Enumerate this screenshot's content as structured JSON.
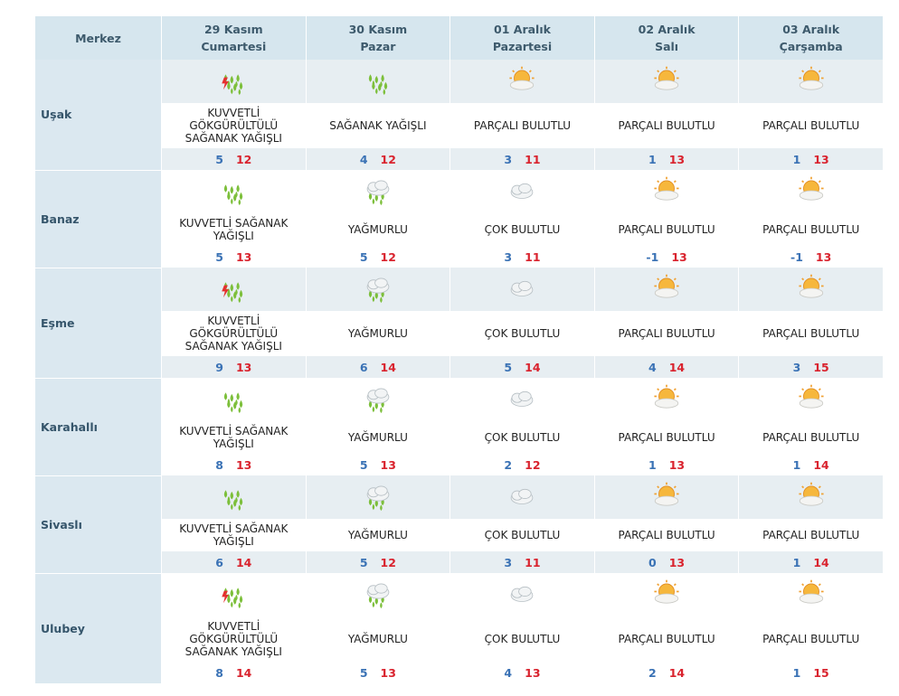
{
  "header": {
    "location_label": "Merkez",
    "days": [
      {
        "date": "29 Kasım",
        "weekday": "Cumartesi"
      },
      {
        "date": "30 Kasım",
        "weekday": "Pazar"
      },
      {
        "date": "01 Aralık",
        "weekday": "Pazartesi"
      },
      {
        "date": "02 Aralık",
        "weekday": "Salı"
      },
      {
        "date": "03 Aralık",
        "weekday": "Çarşamba"
      }
    ]
  },
  "rows": [
    {
      "city": "Uşak",
      "forecasts": [
        {
          "condition": "KUVVETLİ GÖKGÜRÜLTÜLÜ SAĞANAK YAĞIŞLI",
          "min": 5,
          "max": 12
        },
        {
          "condition": "SAĞANAK YAĞIŞLI",
          "min": 4,
          "max": 12
        },
        {
          "condition": "PARÇALI BULUTLU",
          "min": 3,
          "max": 11
        },
        {
          "condition": "PARÇALI BULUTLU",
          "min": 1,
          "max": 13
        },
        {
          "condition": "PARÇALI BULUTLU",
          "min": 1,
          "max": 13
        }
      ]
    },
    {
      "city": "Banaz",
      "forecasts": [
        {
          "condition": "KUVVETLİ SAĞANAK YAĞIŞLI",
          "min": 5,
          "max": 13
        },
        {
          "condition": "YAĞMURLU",
          "min": 5,
          "max": 12
        },
        {
          "condition": "ÇOK BULUTLU",
          "min": 3,
          "max": 11
        },
        {
          "condition": "PARÇALI BULUTLU",
          "min": -1,
          "max": 13
        },
        {
          "condition": "PARÇALI BULUTLU",
          "min": -1,
          "max": 13
        }
      ]
    },
    {
      "city": "Eşme",
      "forecasts": [
        {
          "condition": "KUVVETLİ GÖKGÜRÜLTÜLÜ SAĞANAK YAĞIŞLI",
          "min": 9,
          "max": 13
        },
        {
          "condition": "YAĞMURLU",
          "min": 6,
          "max": 14
        },
        {
          "condition": "ÇOK BULUTLU",
          "min": 5,
          "max": 14
        },
        {
          "condition": "PARÇALI BULUTLU",
          "min": 4,
          "max": 14
        },
        {
          "condition": "PARÇALI BULUTLU",
          "min": 3,
          "max": 15
        }
      ]
    },
    {
      "city": "Karahallı",
      "forecasts": [
        {
          "condition": "KUVVETLİ SAĞANAK YAĞIŞLI",
          "min": 8,
          "max": 13
        },
        {
          "condition": "YAĞMURLU",
          "min": 5,
          "max": 13
        },
        {
          "condition": "ÇOK BULUTLU",
          "min": 2,
          "max": 12
        },
        {
          "condition": "PARÇALI BULUTLU",
          "min": 1,
          "max": 13
        },
        {
          "condition": "PARÇALI BULUTLU",
          "min": 1,
          "max": 14
        }
      ]
    },
    {
      "city": "Sivaslı",
      "forecasts": [
        {
          "condition": "KUVVETLİ SAĞANAK YAĞIŞLI",
          "min": 6,
          "max": 14
        },
        {
          "condition": "YAĞMURLU",
          "min": 5,
          "max": 12
        },
        {
          "condition": "ÇOK BULUTLU",
          "min": 3,
          "max": 11
        },
        {
          "condition": "PARÇALI BULUTLU",
          "min": 0,
          "max": 13
        },
        {
          "condition": "PARÇALI BULUTLU",
          "min": 1,
          "max": 14
        }
      ]
    },
    {
      "city": "Ulubey",
      "forecasts": [
        {
          "condition": "KUVVETLİ GÖKGÜRÜLTÜLÜ SAĞANAK YAĞIŞLI",
          "min": 8,
          "max": 14
        },
        {
          "condition": "YAĞMURLU",
          "min": 5,
          "max": 13
        },
        {
          "condition": "ÇOK BULUTLU",
          "min": 4,
          "max": 13
        },
        {
          "condition": "PARÇALI BULUTLU",
          "min": 2,
          "max": 14
        },
        {
          "condition": "PARÇALI BULUTLU",
          "min": 1,
          "max": 15
        }
      ]
    }
  ]
}
